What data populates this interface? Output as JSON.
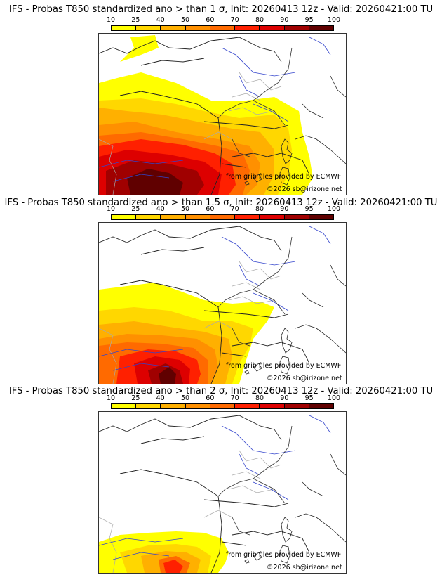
{
  "panels": [
    {
      "title": "IFS - Probas T850  standardized ano > than 1 σ, Init: 20260413 12z - Valid: 20260421:00 TU",
      "sigma": "1"
    },
    {
      "title": "IFS - Probas T850  standardized ano > than 1.5 σ, Init: 20260413 12z - Valid: 20260421:00 TU",
      "sigma": "1.5"
    },
    {
      "title": "IFS - Probas T850  standardized ano > than 2 σ, Init: 20260413 12z - Valid: 20260421:00 TU",
      "sigma": "2"
    }
  ],
  "colorbar": {
    "ticks": [
      "10",
      "25",
      "40",
      "50",
      "60",
      "70",
      "80",
      "90",
      "95",
      "100"
    ],
    "colors": [
      "#ffff00",
      "#ffd700",
      "#ffb000",
      "#ff9000",
      "#ff6a00",
      "#ff2000",
      "#dd0000",
      "#a00000",
      "#600000"
    ]
  },
  "credits": {
    "source": "from grib files provided by ECMWF",
    "copyright": "©2026 sb@irizone.net"
  }
}
